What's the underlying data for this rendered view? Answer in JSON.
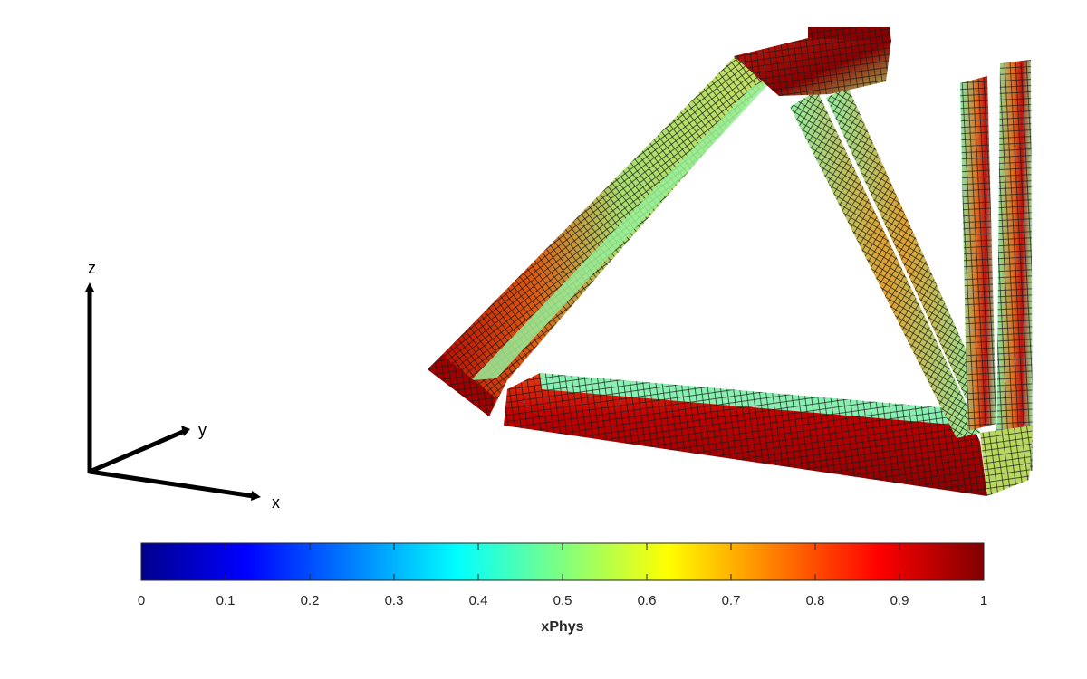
{
  "figure": {
    "axes_triad": {
      "x_label": "x",
      "y_label": "y",
      "z_label": "z"
    },
    "colorbar": {
      "label": "xPhys",
      "colormap": "jet",
      "range": [
        0,
        1
      ],
      "ticks": [
        "0",
        "0.1",
        "0.2",
        "0.3",
        "0.4",
        "0.5",
        "0.6",
        "0.7",
        "0.8",
        "0.9",
        "1"
      ],
      "tick_values": [
        0,
        0.1,
        0.2,
        0.3,
        0.4,
        0.5,
        0.6,
        0.7,
        0.8,
        0.9,
        1
      ]
    },
    "structure": {
      "description_type": "3d-voxel-topology",
      "colors": {
        "high": "#a00000",
        "mid_high": "#ee7010",
        "mid": "#b8e070",
        "low": "#80ffb0",
        "edge": "#1a1a1a"
      }
    }
  }
}
